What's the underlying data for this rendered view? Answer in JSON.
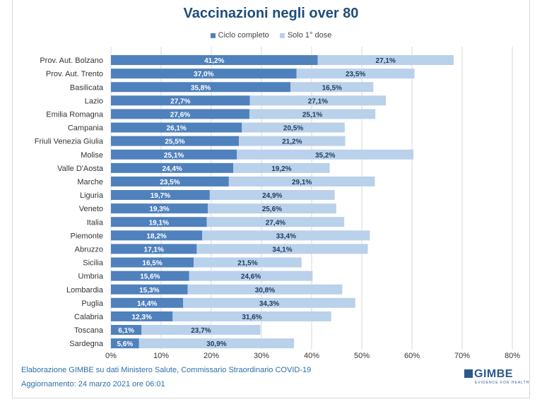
{
  "chart_data": {
    "type": "bar",
    "orientation": "horizontal",
    "stacked": true,
    "title": "Vaccinazioni negli over 80",
    "xlabel": "",
    "ylabel": "",
    "xlim": [
      0,
      80
    ],
    "x_ticks": [
      "0%",
      "10%",
      "20%",
      "30%",
      "40%",
      "50%",
      "60%",
      "70%",
      "80%"
    ],
    "grid": true,
    "legend_position": "top",
    "categories": [
      "Prov. Aut. Bolzano",
      "Prov. Aut. Trento",
      "Basilicata",
      "Lazio",
      "Emilia Romagna",
      "Campania",
      "Friuli Venezia Giulia",
      "Molise",
      "Valle D'Aosta",
      "Marche",
      "Liguria",
      "Veneto",
      "Italia",
      "Piemonte",
      "Abruzzo",
      "Sicilia",
      "Umbria",
      "Lombardia",
      "Puglia",
      "Calabria",
      "Toscana",
      "Sardegna"
    ],
    "series": [
      {
        "name": "Ciclo completo",
        "color": "#4f81bd",
        "values": [
          41.2,
          37.0,
          35.8,
          27.7,
          27.6,
          26.1,
          25.5,
          25.1,
          24.4,
          23.5,
          19.7,
          19.3,
          19.1,
          18.2,
          17.1,
          16.5,
          15.6,
          15.3,
          14.4,
          12.3,
          6.1,
          5.6
        ],
        "labels": [
          "41,2%",
          "37,0%",
          "35,8%",
          "27,7%",
          "27,6%",
          "26,1%",
          "25,5%",
          "25,1%",
          "24,4%",
          "23,5%",
          "19,7%",
          "19,3%",
          "19,1%",
          "18,2%",
          "17,1%",
          "16,5%",
          "15,6%",
          "15,3%",
          "14,4%",
          "12,3%",
          "6,1%",
          "5,6%"
        ]
      },
      {
        "name": "Solo 1° dose",
        "color": "#b9d1ea",
        "values": [
          27.1,
          23.5,
          16.5,
          27.1,
          25.1,
          20.5,
          21.2,
          35.2,
          19.2,
          29.1,
          24.9,
          25.6,
          27.4,
          33.4,
          34.1,
          21.5,
          24.6,
          30.8,
          34.3,
          31.6,
          23.7,
          30.9
        ],
        "labels": [
          "27,1%",
          "23,5%",
          "16,5%",
          "27,1%",
          "25,1%",
          "20,5%",
          "21,2%",
          "35,2%",
          "19,2%",
          "29,1%",
          "24,9%",
          "25,6%",
          "27,4%",
          "33,4%",
          "34,1%",
          "21,5%",
          "24,6%",
          "30,8%",
          "34,3%",
          "31,6%",
          "23,7%",
          "30,9%"
        ]
      }
    ]
  },
  "footer": {
    "line1": "Elaborazione GIMBE su dati Ministero Salute, Commissario Straordinario  COVID-19",
    "line2": "Aggiornamento:  24 marzo 2021 ore 06:01"
  },
  "logo": {
    "name": "GIMBE",
    "tagline": "EVIDENCE FOR HEALTH"
  }
}
